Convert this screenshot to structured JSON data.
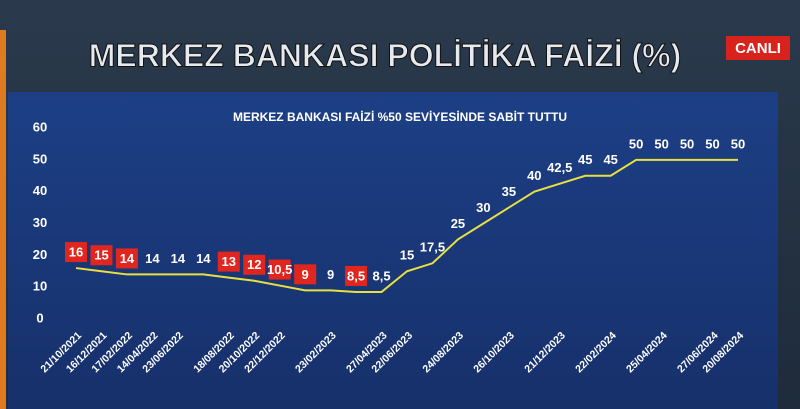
{
  "badge": "CANLI",
  "chart_data": {
    "type": "line",
    "title": "MERKEZ BANKASI POLİTİKA FAİZİ (%)",
    "subtitle": "MERKEZ BANKASI FAİZİ %50 SEVİYESİNDE SABİT TUTTU",
    "categories": [
      "21/10/2021",
      "16/12/2021",
      "17/02/2022",
      "14/04/2022",
      "23/06/2022",
      null,
      "18/08/2022",
      "20/10/2022",
      "22/12/2022",
      null,
      "23/02/2023",
      null,
      "27/04/2023",
      "22/06/2023",
      null,
      "24/08/2023",
      null,
      "26/10/2023",
      null,
      "21/12/2023",
      null,
      "22/02/2024",
      null,
      "25/04/2024",
      null,
      "27/06/2024",
      "20/08/2024"
    ],
    "series": [
      {
        "name": "Politika Faizi",
        "color": "#e8e040",
        "values": [
          16,
          15,
          14,
          14,
          14,
          14,
          13,
          12,
          10.5,
          9,
          9,
          8.5,
          8.5,
          15,
          17.5,
          25,
          30,
          35,
          40,
          42.5,
          45,
          45,
          50,
          50,
          50,
          50,
          50
        ],
        "value_labels": [
          "16",
          "15",
          "14",
          "14",
          "14",
          "14",
          "13",
          "12",
          "10,5",
          "9",
          "9",
          "8,5",
          "8,5",
          "15",
          "17,5",
          "25",
          "30",
          "35",
          "40",
          "42,5",
          "45",
          "45",
          "50",
          "50",
          "50",
          "50",
          "50"
        ]
      }
    ],
    "highlight": {
      "color": "#e0261e",
      "indices": [
        0,
        1,
        2,
        6,
        7,
        8,
        9,
        11
      ]
    },
    "ylim": [
      0,
      60
    ],
    "yticks": [
      0,
      10,
      20,
      30,
      40,
      50,
      60
    ],
    "grid": false
  }
}
